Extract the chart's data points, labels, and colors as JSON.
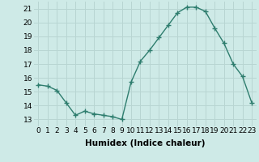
{
  "x": [
    0,
    1,
    2,
    3,
    4,
    5,
    6,
    7,
    8,
    9,
    10,
    11,
    12,
    13,
    14,
    15,
    16,
    17,
    18,
    19,
    20,
    21,
    22,
    23
  ],
  "y": [
    15.5,
    15.4,
    15.1,
    14.2,
    13.3,
    13.6,
    13.4,
    13.3,
    13.2,
    13.0,
    15.7,
    17.2,
    18.0,
    18.9,
    19.8,
    20.7,
    21.1,
    21.1,
    20.8,
    19.6,
    18.5,
    17.0,
    16.1,
    14.2
  ],
  "line_color": "#2e7d6e",
  "marker": "+",
  "marker_size": 4,
  "marker_lw": 1.0,
  "bg_color": "#ceeae7",
  "grid_color": "#b8d5d2",
  "xlabel": "Humidex (Indice chaleur)",
  "xlabel_fontsize": 7.5,
  "xlim": [
    -0.5,
    23.5
  ],
  "ylim": [
    12.5,
    21.5
  ],
  "yticks": [
    13,
    14,
    15,
    16,
    17,
    18,
    19,
    20,
    21
  ],
  "xticks": [
    0,
    1,
    2,
    3,
    4,
    5,
    6,
    7,
    8,
    9,
    10,
    11,
    12,
    13,
    14,
    15,
    16,
    17,
    18,
    19,
    20,
    21,
    22,
    23
  ],
  "tick_fontsize": 6.5,
  "line_width": 1.0
}
